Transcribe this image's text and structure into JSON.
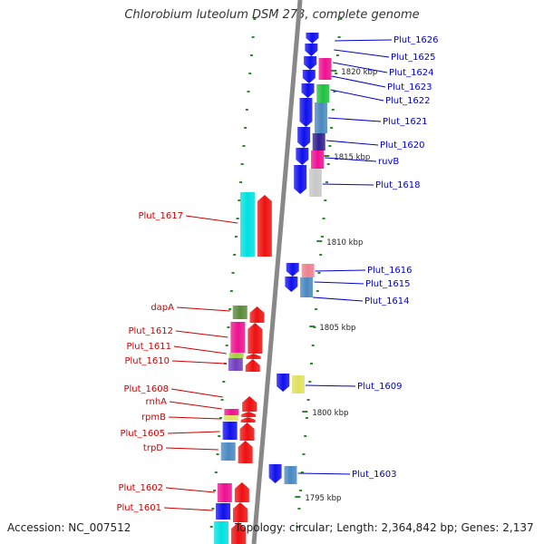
{
  "title": "Chlorobium luteolum DSM 273, complete genome",
  "accession": "Accession: NC_007512",
  "topology": "Topology: circular; Length: 2,364,842 bp; Genes: 2,137",
  "colors": {
    "backbone": "#888888",
    "forward_label": "#0000cc",
    "reverse_label": "#cc0000",
    "tick": "#2a8a2a",
    "kbp_label": "#222222"
  },
  "kbp_labels": [
    "1820 kbp",
    "1815 kbp",
    "1810 kbp",
    "1805 kbp",
    "1800 kbp",
    "1795 kbp"
  ],
  "forward_gene_labels": [
    "Plut_1626",
    "Plut_1625",
    "Plut_1624",
    "Plut_1623",
    "Plut_1622",
    "Plut_1621",
    "Plut_1620",
    "ruvB",
    "Plut_1618",
    "Plut_1616",
    "Plut_1615",
    "Plut_1614",
    "Plut_1609",
    "Plut_1603"
  ],
  "reverse_gene_labels": [
    "Plut_1617",
    "dapA",
    "Plut_1612",
    "Plut_1611",
    "Plut_1610",
    "Plut_1608",
    "rnhA",
    "rpmB",
    "Plut_1605",
    "trpD",
    "Plut_1602",
    "Plut_1601"
  ]
}
